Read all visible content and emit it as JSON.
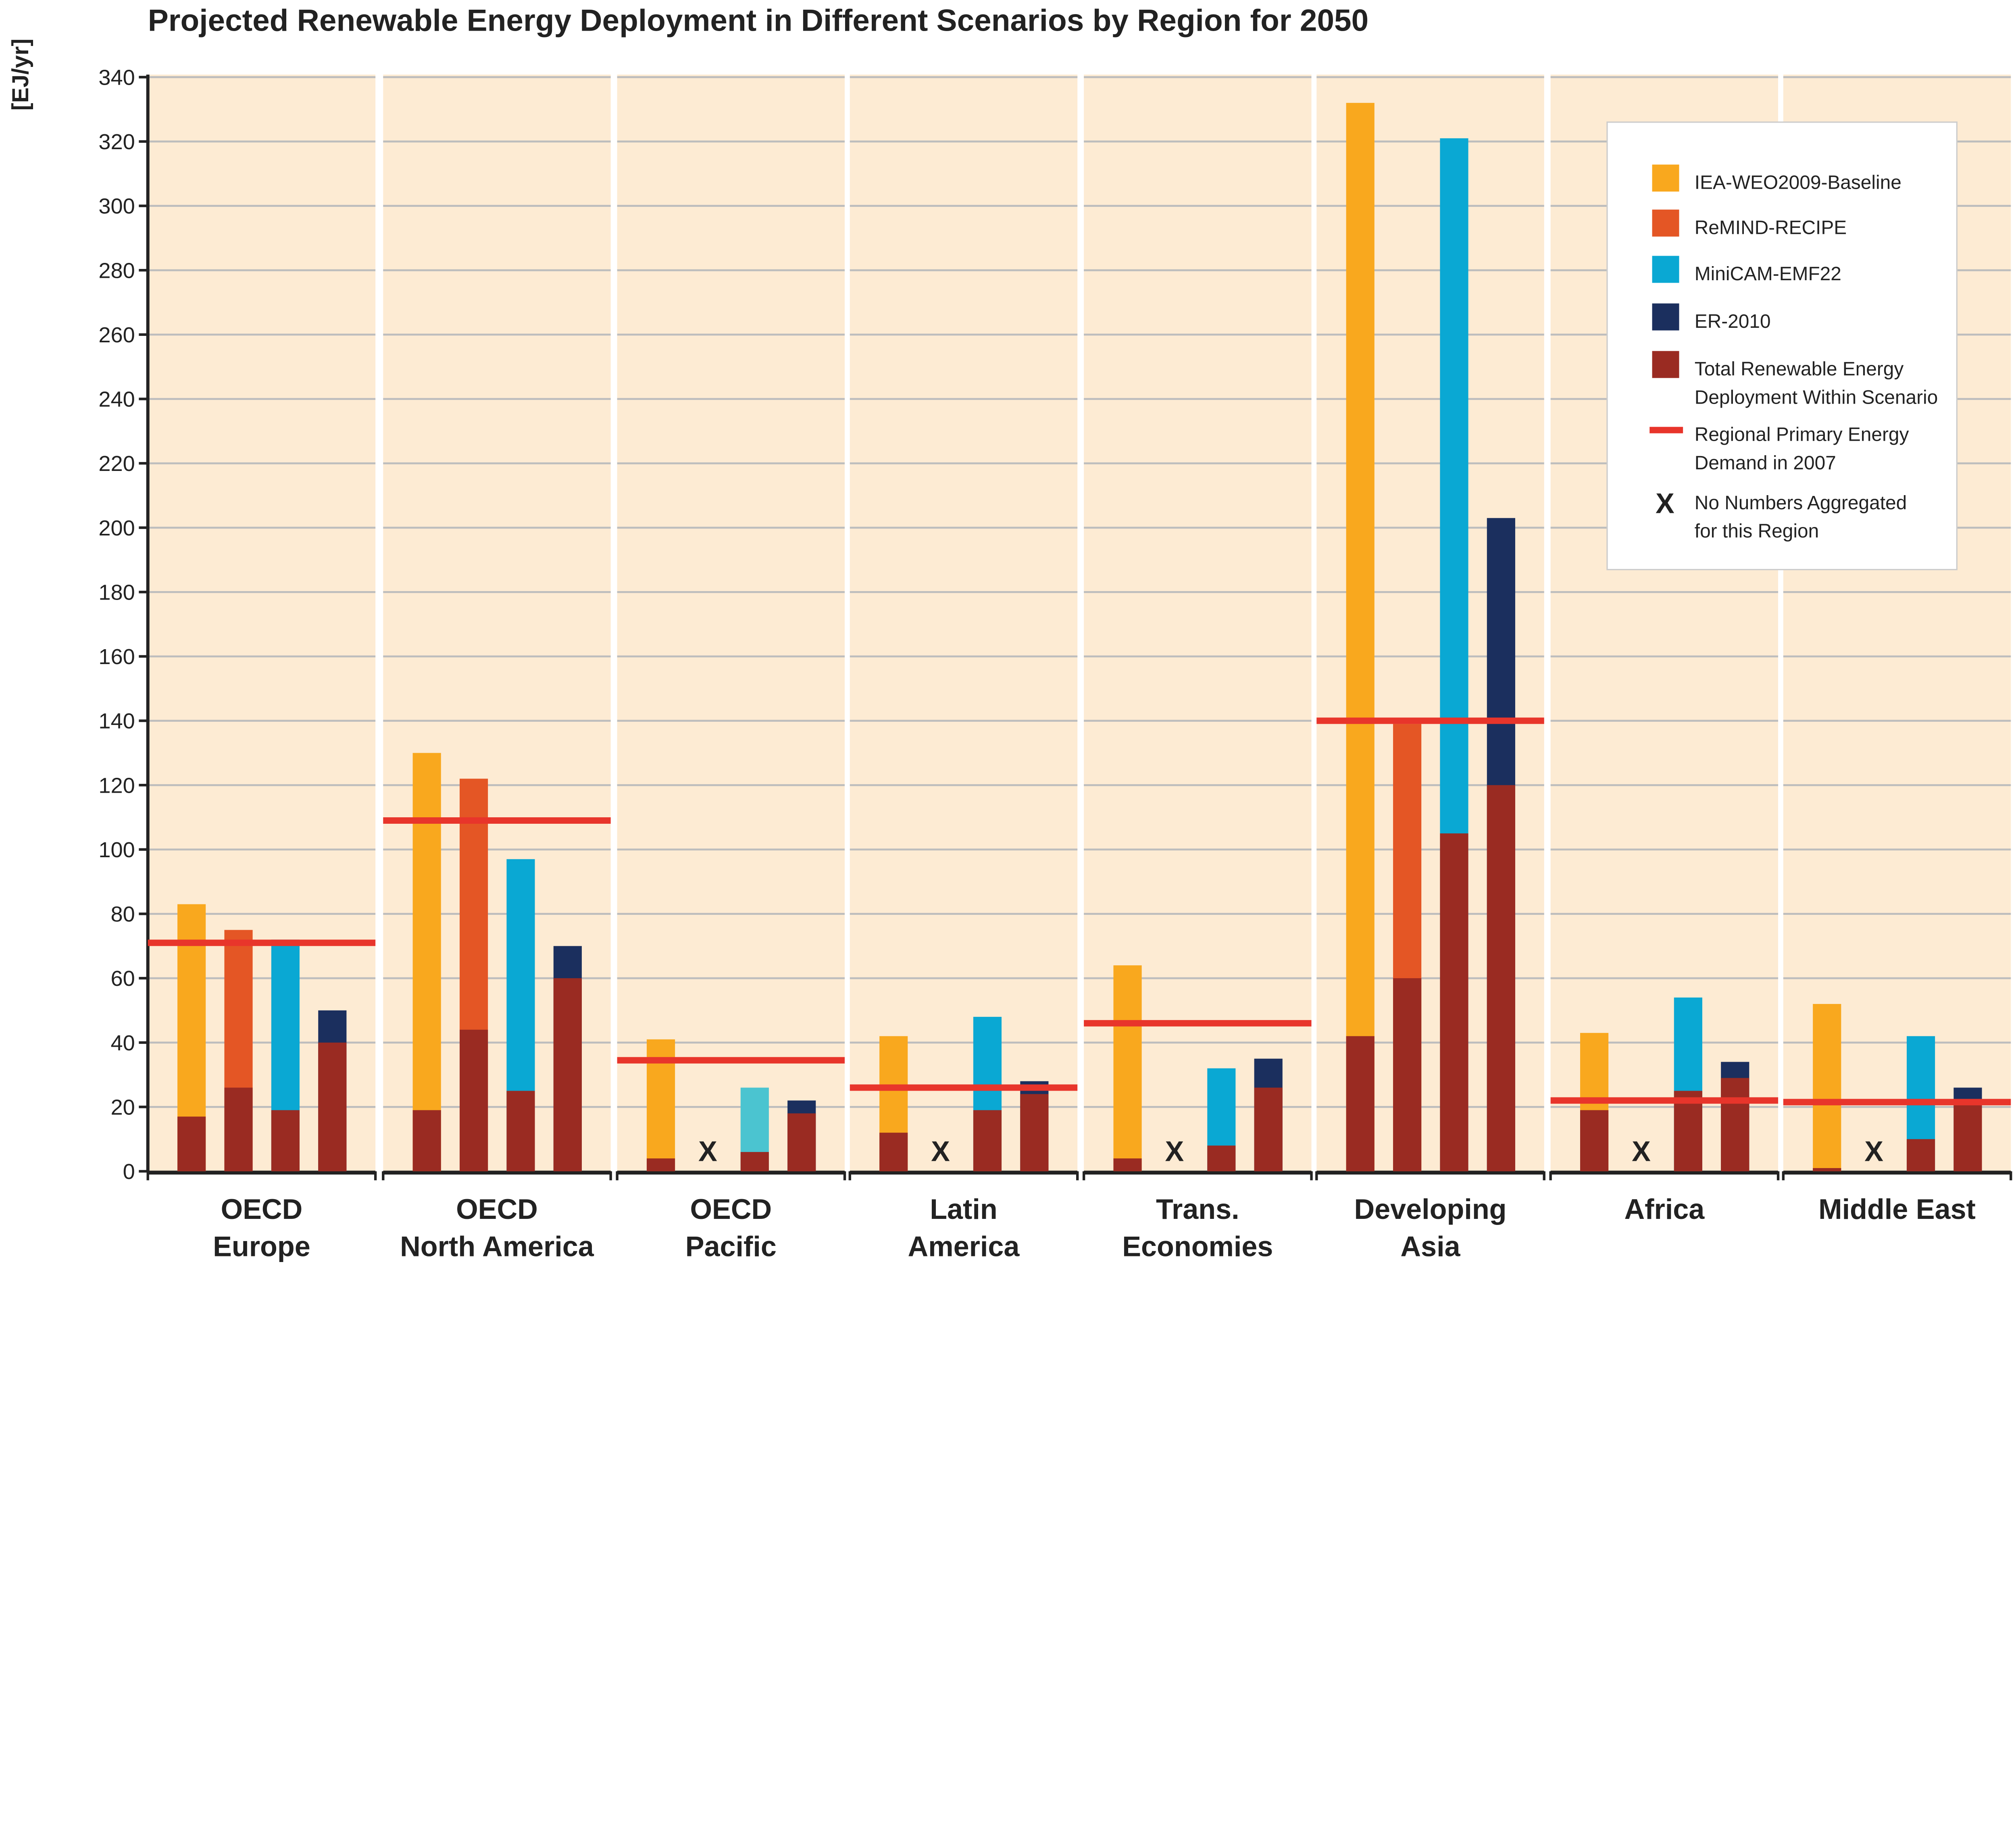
{
  "chart_data": {
    "type": "bar",
    "title": "Projected Renewable Energy Deployment in Different Scenarios by Region for 2050",
    "ylabel": "[EJ/yr]",
    "ylim": [
      0,
      340
    ],
    "yticks": [
      0,
      20,
      40,
      60,
      80,
      100,
      120,
      140,
      160,
      180,
      200,
      220,
      240,
      260,
      280,
      300,
      320,
      340
    ],
    "grid": true,
    "legend_position": "top-right",
    "regions": [
      "OECD Europe",
      "OECD North America",
      "OECD Pacific",
      "Latin America",
      "Trans. Economies",
      "Developing Asia",
      "Africa",
      "Middle East"
    ],
    "region_labels": [
      [
        "OECD",
        "Europe"
      ],
      [
        "OECD",
        "North America"
      ],
      [
        "OECD",
        "Pacific"
      ],
      [
        "Latin",
        "America"
      ],
      [
        "Trans.",
        "Economies"
      ],
      [
        "Developing",
        "Asia"
      ],
      [
        "Africa",
        ""
      ],
      [
        "Middle East",
        ""
      ]
    ],
    "series": [
      {
        "name": "IEA-WEO2009-Baseline",
        "color": "#F9A81E",
        "values": [
          83,
          130,
          41,
          42,
          64,
          332,
          43,
          52
        ],
        "renewable": [
          17,
          19,
          4,
          12,
          4,
          42,
          19,
          1
        ]
      },
      {
        "name": "ReMIND-RECIPE",
        "color": "#E45625",
        "values": [
          75,
          122,
          null,
          null,
          null,
          139,
          null,
          null
        ],
        "renewable": [
          26,
          44,
          null,
          null,
          null,
          60,
          null,
          null
        ]
      },
      {
        "name": "MiniCAM-EMF22",
        "color": "#0AA8D3",
        "values": [
          72,
          97,
          26,
          48,
          32,
          321,
          54,
          42
        ],
        "renewable": [
          19,
          25,
          6,
          19,
          8,
          105,
          25,
          10
        ]
      },
      {
        "name": "ER-2010",
        "color": "#1B2F5E",
        "values": [
          50,
          70,
          22,
          28,
          35,
          203,
          34,
          26
        ],
        "renewable": [
          40,
          60,
          18,
          24,
          26,
          120,
          29,
          22
        ]
      }
    ],
    "primary_energy_demand_2007": [
      71,
      109,
      34.5,
      26,
      46,
      140,
      22,
      21.5
    ],
    "legend": [
      {
        "label": [
          "IEA-WEO2009-Baseline"
        ],
        "color": "#F9A81E",
        "kind": "swatch"
      },
      {
        "label": [
          "ReMIND-RECIPE"
        ],
        "color": "#E45625",
        "kind": "swatch"
      },
      {
        "label": [
          "MiniCAM-EMF22"
        ],
        "color": "#0AA8D3",
        "kind": "swatch"
      },
      {
        "label": [
          "ER-2010"
        ],
        "color": "#1B2F5E",
        "kind": "swatch"
      },
      {
        "label": [
          "Total Renewable Energy",
          "Deployment Within Scenario"
        ],
        "color": "#9A2B22",
        "kind": "swatch"
      },
      {
        "label": [
          "Regional Primary Energy",
          "Demand in 2007"
        ],
        "color": "#E8352B",
        "kind": "line"
      },
      {
        "label": [
          "No Numbers Aggregated",
          "for this Region"
        ],
        "symbol": "X",
        "kind": "x"
      }
    ],
    "no_data_symbol": "X",
    "colors": {
      "panel_bg": "#FDEBD3",
      "grid": "#BDBDBD",
      "renewable": "#9A2B22",
      "demand_line": "#E8352B",
      "pacific_minicam": "#4BC4D0"
    }
  }
}
